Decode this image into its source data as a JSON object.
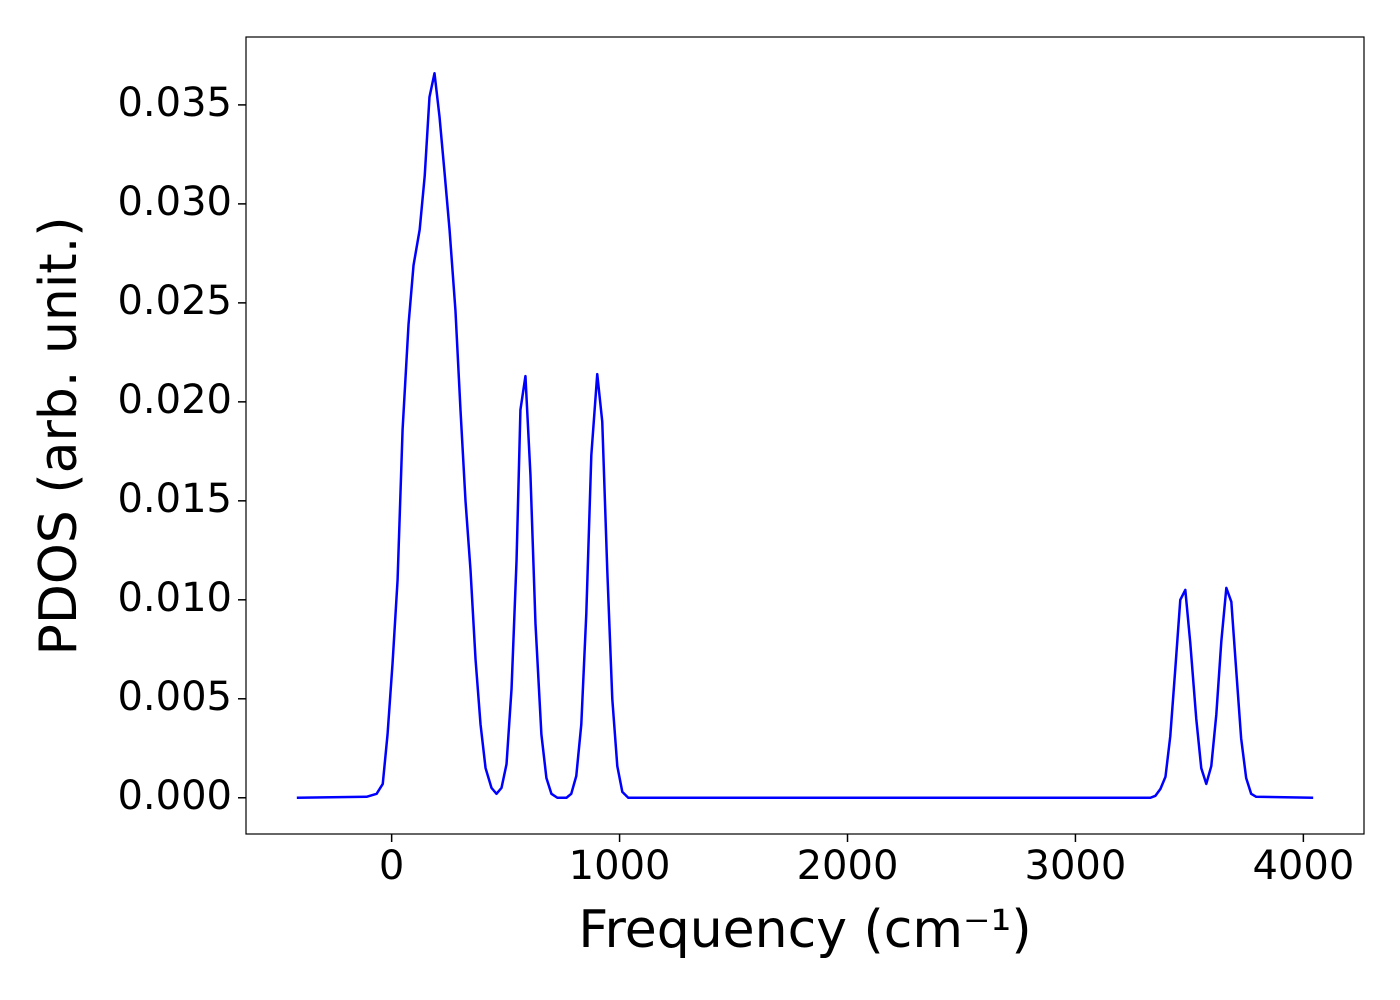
{
  "chart_data": {
    "type": "line",
    "xlabel": "Frequency (cm⁻¹)",
    "ylabel": "PDOS (arb. unit.)",
    "xlim": [
      -639,
      4266
    ],
    "ylim": [
      -0.00183,
      0.03843
    ],
    "xticks": [
      0,
      1000,
      2000,
      3000,
      4000
    ],
    "yticks": [
      {
        "value": 0,
        "label": "0.000"
      },
      {
        "value": 0.005,
        "label": "0.005"
      },
      {
        "value": 0.01,
        "label": "0.010"
      },
      {
        "value": 0.015,
        "label": "0.015"
      },
      {
        "value": 0.02,
        "label": "0.020"
      },
      {
        "value": 0.025,
        "label": "0.025"
      },
      {
        "value": 0.03,
        "label": "0.030"
      },
      {
        "value": 0.035,
        "label": "0.035"
      }
    ],
    "series": [
      {
        "color": "#0000ff",
        "x": [
          -416,
          -110,
          -66,
          -39,
          -18,
          4,
          26,
          48,
          74,
          96,
          123,
          145,
          166,
          188,
          210,
          232,
          254,
          280,
          302,
          324,
          346,
          368,
          390,
          412,
          438,
          460,
          482,
          504,
          526,
          548,
          565,
          587,
          609,
          631,
          657,
          679,
          701,
          727,
          767,
          788,
          810,
          832,
          854,
          876,
          902,
          924,
          946,
          968,
          990,
          1012,
          1038,
          3329,
          3351,
          3373,
          3395,
          3416,
          3438,
          3460,
          3482,
          3504,
          3530,
          3552,
          3574,
          3596,
          3618,
          3640,
          3662,
          3684,
          3705,
          3727,
          3749,
          3771,
          3793,
          4043
        ],
        "values": [
          0,
          5e-05,
          0.0002,
          0.0007,
          0.0032,
          0.0068,
          0.011,
          0.0186,
          0.0239,
          0.0269,
          0.0287,
          0.0314,
          0.0354,
          0.0366,
          0.0344,
          0.0316,
          0.0287,
          0.0246,
          0.0196,
          0.015,
          0.0115,
          0.007,
          0.0037,
          0.0015,
          0.0005,
          0.0002,
          0.0005,
          0.0017,
          0.0055,
          0.012,
          0.0196,
          0.0213,
          0.0163,
          0.0088,
          0.0032,
          0.001,
          0.0002,
          0,
          0,
          0.0002,
          0.0011,
          0.0037,
          0.0093,
          0.0173,
          0.0214,
          0.019,
          0.0115,
          0.005,
          0.0016,
          0.0003,
          0,
          0,
          0.0001,
          0.00045,
          0.00106,
          0.0031,
          0.0065,
          0.01,
          0.0105,
          0.0078,
          0.004,
          0.0015,
          0.0007,
          0.0016,
          0.0042,
          0.0079,
          0.0106,
          0.0099,
          0.0065,
          0.003,
          0.001,
          0.0002,
          5e-05,
          0
        ]
      }
    ]
  }
}
